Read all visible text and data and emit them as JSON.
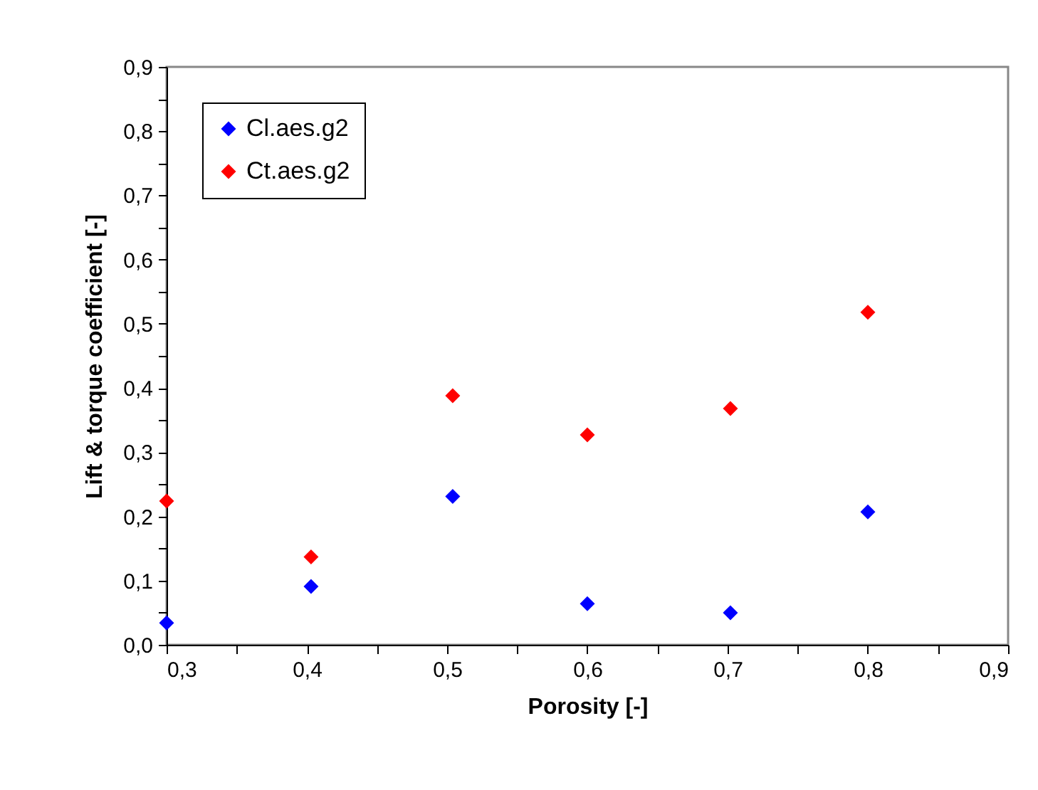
{
  "chart_data": {
    "type": "scatter",
    "xlabel": "Porosity  [-]",
    "ylabel": "Lift & torque coefficient  [-]",
    "x": [
      0.3,
      0.403,
      0.504,
      0.6,
      0.702,
      0.8
    ],
    "series": [
      {
        "name": "Cl.aes.g2",
        "color": "#0000ff",
        "values": [
          0.034,
          0.091,
          0.231,
          0.064,
          0.05,
          0.207
        ]
      },
      {
        "name": "Ct.aes.g2",
        "color": "#ff0000",
        "values": [
          0.224,
          0.137,
          0.388,
          0.327,
          0.368,
          0.518
        ]
      }
    ],
    "xlim": [
      0.3,
      0.9
    ],
    "ylim": [
      0,
      0.9
    ],
    "xticks": [
      {
        "value": 0.3,
        "label": "0,3"
      },
      {
        "value": 0.35,
        "label": null
      },
      {
        "value": 0.4,
        "label": "0,4"
      },
      {
        "value": 0.45,
        "label": null
      },
      {
        "value": 0.5,
        "label": "0,5"
      },
      {
        "value": 0.55,
        "label": null
      },
      {
        "value": 0.6,
        "label": "0,6"
      },
      {
        "value": 0.65,
        "label": null
      },
      {
        "value": 0.7,
        "label": "0,7"
      },
      {
        "value": 0.75,
        "label": null
      },
      {
        "value": 0.8,
        "label": "0,8"
      },
      {
        "value": 0.85,
        "label": null
      },
      {
        "value": 0.9,
        "label": "0,9"
      }
    ],
    "yticks": [
      {
        "value": 0,
        "label": "0,0"
      },
      {
        "value": 0.05,
        "label": null
      },
      {
        "value": 0.1,
        "label": "0,1"
      },
      {
        "value": 0.15,
        "label": null
      },
      {
        "value": 0.2,
        "label": "0,2"
      },
      {
        "value": 0.25,
        "label": null
      },
      {
        "value": 0.3,
        "label": "0,3"
      },
      {
        "value": 0.35,
        "label": null
      },
      {
        "value": 0.4,
        "label": "0,4"
      },
      {
        "value": 0.45,
        "label": null
      },
      {
        "value": 0.5,
        "label": "0,5"
      },
      {
        "value": 0.55,
        "label": null
      },
      {
        "value": 0.6,
        "label": "0,6"
      },
      {
        "value": 0.65,
        "label": null
      },
      {
        "value": 0.7,
        "label": "0,7"
      },
      {
        "value": 0.75,
        "label": null
      },
      {
        "value": 0.8,
        "label": "0,8"
      },
      {
        "value": 0.85,
        "label": null
      },
      {
        "value": 0.9,
        "label": "0,9"
      }
    ],
    "legend": "top left",
    "marker": "diamond"
  }
}
